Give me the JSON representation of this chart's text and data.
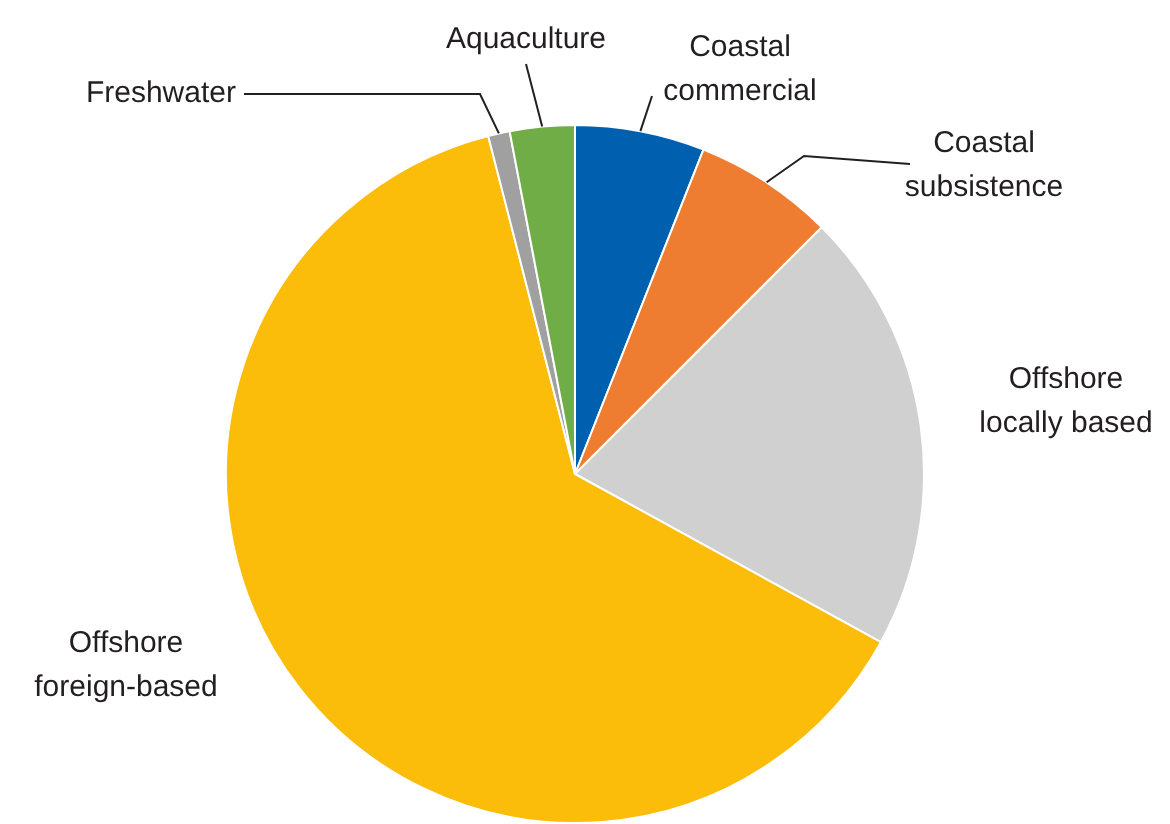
{
  "chart_data": {
    "type": "pie",
    "categories": [
      "Coastal commercial",
      "Coastal subsistence",
      "Offshore locally based",
      "Offshore foreign-based",
      "Freshwater",
      "Aquaculture"
    ],
    "values": [
      6,
      6.5,
      20.5,
      63,
      1,
      3
    ],
    "colors": [
      "#0060b0",
      "#ef7d31",
      "#d0d0d0",
      "#fbbc0a",
      "#a0a0a0",
      "#70ad47"
    ],
    "legend": false
  }
}
